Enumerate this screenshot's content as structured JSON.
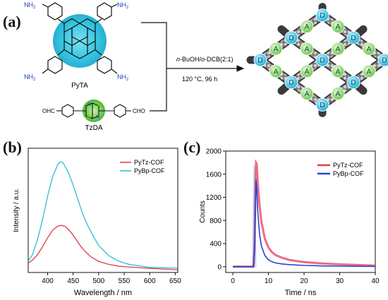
{
  "panel_labels": {
    "a": "(a)",
    "b": "(b)",
    "c": "(c)"
  },
  "scheme": {
    "amino": "NH",
    "amino_sub": "2",
    "pyta_label": "PyTA",
    "tzda_label": "TzDA",
    "aldehyde": "CHO",
    "aldehyde_left": "OHC",
    "thiazole_n": "N",
    "thiazole_s": "S",
    "condition_solvent": "-BuOH/",
    "condition_n": "n",
    "condition_o": "o",
    "condition_dcb": "-DCB(2:1)",
    "condition_temp": "120 °C, 96 h",
    "node_donor": "D",
    "node_acceptor": "A"
  },
  "colors": {
    "pyrene_glow": "#2fc3de",
    "thiazole_glow": "#55c84e",
    "node_d": "#2fc6e8",
    "node_a": "#8fd96e",
    "pytz": "#e02a3a",
    "pybp": "#20b7d6",
    "decay_pytz": "#e8385a",
    "decay_pybp": "#2a42d6"
  },
  "chart_data": [
    {
      "panel": "b",
      "type": "line",
      "xlabel": "Wavelength / nm",
      "ylabel": "Intensity / a.u.",
      "xlim": [
        362,
        655
      ],
      "ylim": [
        0,
        1
      ],
      "xticks": [
        "400",
        "450",
        "500",
        "550",
        "600",
        "650"
      ],
      "yticks_shown": false,
      "legend_position": "top-right",
      "series": [
        {
          "name": "PyTz-COF",
          "color": "#e02a3a",
          "x": [
            362,
            370,
            380,
            390,
            400,
            410,
            420,
            427,
            435,
            445,
            455,
            465,
            475,
            485,
            500,
            520,
            540,
            560,
            600,
            655
          ],
          "y": [
            0.06,
            0.09,
            0.14,
            0.21,
            0.29,
            0.36,
            0.4,
            0.41,
            0.4,
            0.35,
            0.28,
            0.21,
            0.16,
            0.12,
            0.08,
            0.05,
            0.03,
            0.02,
            0.01,
            0.0
          ]
        },
        {
          "name": "PyBp-COF",
          "color": "#20b7d6",
          "x": [
            362,
            370,
            380,
            390,
            400,
            410,
            420,
            425,
            430,
            440,
            450,
            460,
            470,
            480,
            490,
            500,
            520,
            540,
            560,
            600,
            655
          ],
          "y": [
            0.08,
            0.13,
            0.27,
            0.46,
            0.68,
            0.86,
            0.97,
            0.99,
            0.98,
            0.9,
            0.78,
            0.64,
            0.5,
            0.39,
            0.3,
            0.22,
            0.13,
            0.08,
            0.05,
            0.02,
            0.01
          ]
        }
      ]
    },
    {
      "panel": "c",
      "type": "line",
      "xlabel": "Time / ns",
      "ylabel": "Counts",
      "xlim": [
        -2,
        40
      ],
      "ylim": [
        -100,
        2000
      ],
      "xticks": [
        0,
        10,
        20,
        30,
        40
      ],
      "yticks": [
        0,
        400,
        800,
        1200,
        1600,
        2000
      ],
      "legend_position": "top-right",
      "series": [
        {
          "name": "PyTz-COF",
          "color": "#e8385a",
          "x": [
            0,
            5.8,
            6.1,
            6.3,
            6.5,
            6.7,
            7.0,
            7.5,
            8,
            9,
            10,
            11,
            12,
            14,
            16,
            20,
            25,
            30,
            35,
            40
          ],
          "y": [
            0,
            0,
            400,
            1200,
            1800,
            1780,
            1450,
            1050,
            780,
            480,
            330,
            250,
            200,
            150,
            115,
            80,
            55,
            40,
            30,
            20
          ]
        },
        {
          "name": "PyBp-COF",
          "color": "#2a42d6",
          "x": [
            0,
            5.8,
            6.1,
            6.3,
            6.5,
            6.7,
            7.0,
            7.5,
            8,
            9,
            10,
            11,
            12,
            14,
            16,
            20,
            25,
            30,
            40
          ],
          "y": [
            0,
            0,
            300,
            900,
            1500,
            1380,
            950,
            560,
            360,
            190,
            120,
            85,
            65,
            45,
            35,
            22,
            14,
            10,
            5
          ]
        }
      ]
    }
  ]
}
